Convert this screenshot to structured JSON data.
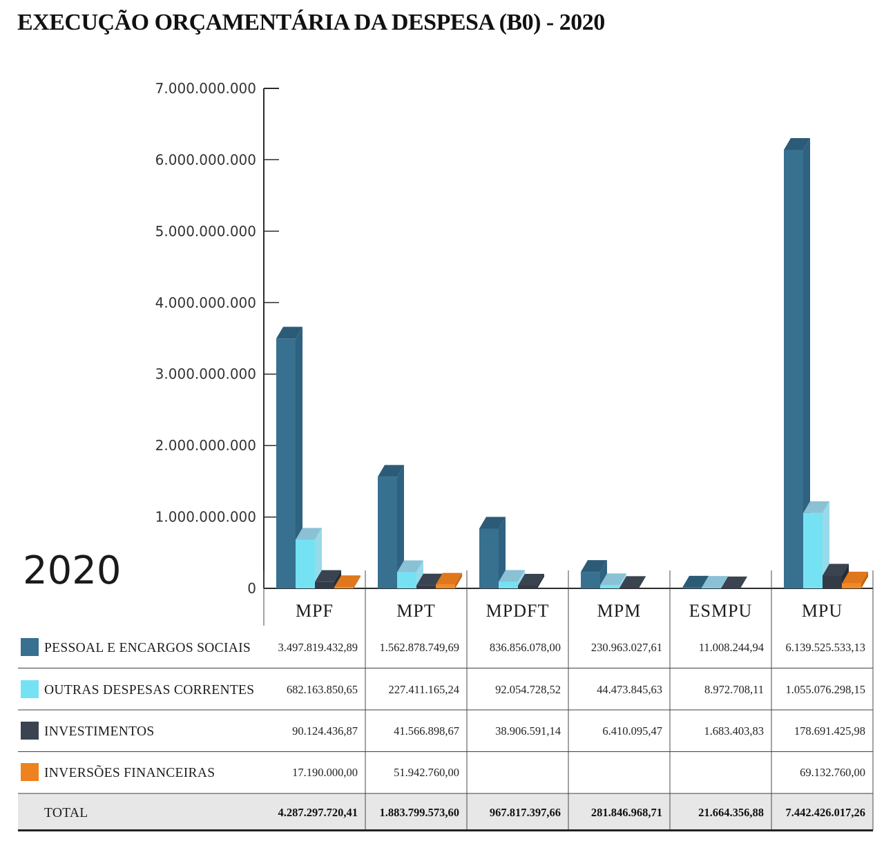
{
  "title": "EXECUÇÃO ORÇAMENTÁRIA DA DESPESA (B0) - 2020",
  "year_label": "2020",
  "chart_data": {
    "type": "bar",
    "variant": "grouped-3d-columns",
    "title": "EXECUÇÃO ORÇAMENTÁRIA DA DESPESA (B0) - 2020",
    "categories": [
      "MPF",
      "MPT",
      "MPDFT",
      "MPM",
      "ESMPU",
      "MPU"
    ],
    "series": [
      {
        "name": "PESSOAL E ENCARGOS SOCIAIS",
        "values": [
          3497819432.89,
          1562878749.69,
          836856078.0,
          230963027.61,
          11008244.94,
          6139525533.13
        ],
        "colors": {
          "front": "#38708F",
          "top": "#2C5B77",
          "side": "#2F6181"
        }
      },
      {
        "name": "OUTRAS DESPESAS CORRENTES",
        "values": [
          682163850.65,
          227411165.24,
          92054728.52,
          44473845.63,
          8972708.11,
          1055076298.15
        ],
        "colors": {
          "front": "#75E2F4",
          "top": "#8BC1D5",
          "side": "#97DAEA"
        }
      },
      {
        "name": "INVESTIMENTOS",
        "values": [
          90124436.87,
          41566898.67,
          38906591.14,
          6410095.47,
          1683403.83,
          178691425.98
        ],
        "colors": {
          "front": "#323B47",
          "top": "#3A4450",
          "side": "#262D37"
        }
      },
      {
        "name": "INVERSÕES FINANCEIRAS",
        "values": [
          17190000.0,
          51942760.0,
          null,
          null,
          null,
          69132760.0
        ],
        "colors": {
          "front": "#F18A25",
          "top": "#E0771C",
          "side": "#C2660F"
        }
      }
    ],
    "totals": [
      4287297720.41,
      1883799573.6,
      967817397.66,
      281846968.71,
      21664356.88,
      7442426017.26
    ],
    "ylim": [
      0,
      7000000000
    ],
    "ytick_step": 1000000000,
    "ytick_labels": [
      "0",
      "1.000.000.000",
      "2.000.000.000",
      "3.000.000.000",
      "4.000.000.000",
      "5.000.000.000",
      "6.000.000.000",
      "7.000.000.000"
    ],
    "grid": false,
    "legend_position": "table-below"
  },
  "table": {
    "rows": [
      {
        "label": "PESSOAL E ENCARGOS SOCIAIS",
        "swatch": "#38708F",
        "is_total": false,
        "values": [
          "3.497.819.432,89",
          "1.562.878.749,69",
          "836.856.078,00",
          "230.963.027,61",
          "11.008.244,94",
          "6.139.525.533,13"
        ]
      },
      {
        "label": "OUTRAS DESPESAS CORRENTES",
        "swatch": "#75E2F4",
        "is_total": false,
        "values": [
          "682.163.850,65",
          "227.411.165,24",
          "92.054.728,52",
          "44.473.845,63",
          "8.972.708,11",
          "1.055.076.298,15"
        ]
      },
      {
        "label": "INVESTIMENTOS",
        "swatch": "#3A4450",
        "is_total": false,
        "values": [
          "90.124.436,87",
          "41.566.898,67",
          "38.906.591,14",
          "6.410.095,47",
          "1.683.403,83",
          "178.691.425,98"
        ]
      },
      {
        "label": "INVERSÕES FINANCEIRAS",
        "swatch": "#EE821E",
        "is_total": false,
        "values": [
          "17.190.000,00",
          "51.942.760,00",
          "",
          "",
          "",
          "69.132.760,00"
        ]
      },
      {
        "label": "TOTAL",
        "swatch": null,
        "is_total": true,
        "values": [
          "4.287.297.720,41",
          "1.883.799.573,60",
          "967.817.397,66",
          "281.846.968,71",
          "21.664.356,88",
          "7.442.426.017,26"
        ]
      }
    ]
  }
}
